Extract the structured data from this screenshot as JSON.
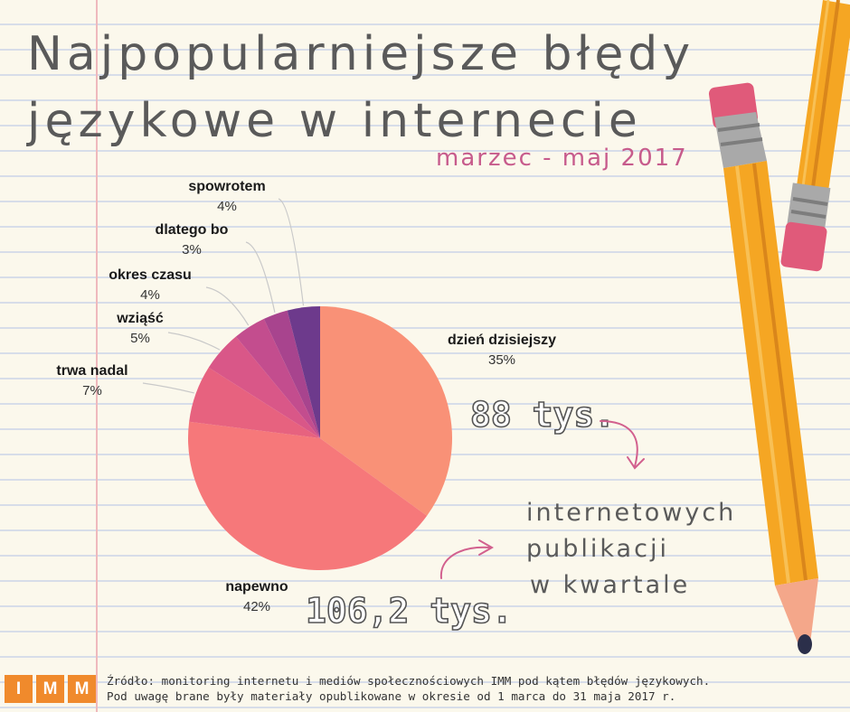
{
  "header": {
    "title_line1": "Najpopularniejsze błędy",
    "title_line2": "językowe w internecie",
    "subtitle": "marzec - maj 2017"
  },
  "chart_data": {
    "type": "pie",
    "title": "Najpopularniejsze błędy językowe w internecie",
    "subtitle": "marzec - maj 2017",
    "slices": [
      {
        "label": "dzień dzisiejszy",
        "value": 35,
        "pct_label": "35%",
        "color": "#f99177"
      },
      {
        "label": "napewno",
        "value": 42,
        "pct_label": "42%",
        "color": "#f6787a"
      },
      {
        "label": "trwa nadal",
        "value": 7,
        "pct_label": "7%",
        "color": "#e7627f"
      },
      {
        "label": "wziąść",
        "value": 5,
        "pct_label": "5%",
        "color": "#d95788"
      },
      {
        "label": "okres czasu",
        "value": 4,
        "pct_label": "4%",
        "color": "#c34d8e"
      },
      {
        "label": "dlatego bo",
        "value": 3,
        "pct_label": "3%",
        "color": "#a8448e"
      },
      {
        "label": "spowrotem",
        "value": 4,
        "pct_label": "4%",
        "color": "#6d3a8c"
      }
    ]
  },
  "stats": {
    "value_top": "88 tys.",
    "value_bottom": "106,2 tys.",
    "text_line1": "internetowych",
    "text_line2": "publikacji",
    "text_line3": "w kwartale"
  },
  "footer": {
    "logo_letters": [
      "I",
      "M",
      "M"
    ],
    "source_line1": "Źródło: monitoring internetu i mediów społecznościowych IMM pod kątem błędów językowych.",
    "source_line2": "Pod uwagę brane były materiały opublikowane w okresie od 1 marca do 31 maja 2017 r."
  },
  "colors": {
    "background": "#fbf8ec",
    "title": "#5a5a5a",
    "subtitle": "#c75b8c",
    "arrow": "#d2608e",
    "logo": "#f08a2c",
    "pencil_body": "#f5a623",
    "pencil_eraser": "#e05a7a"
  }
}
